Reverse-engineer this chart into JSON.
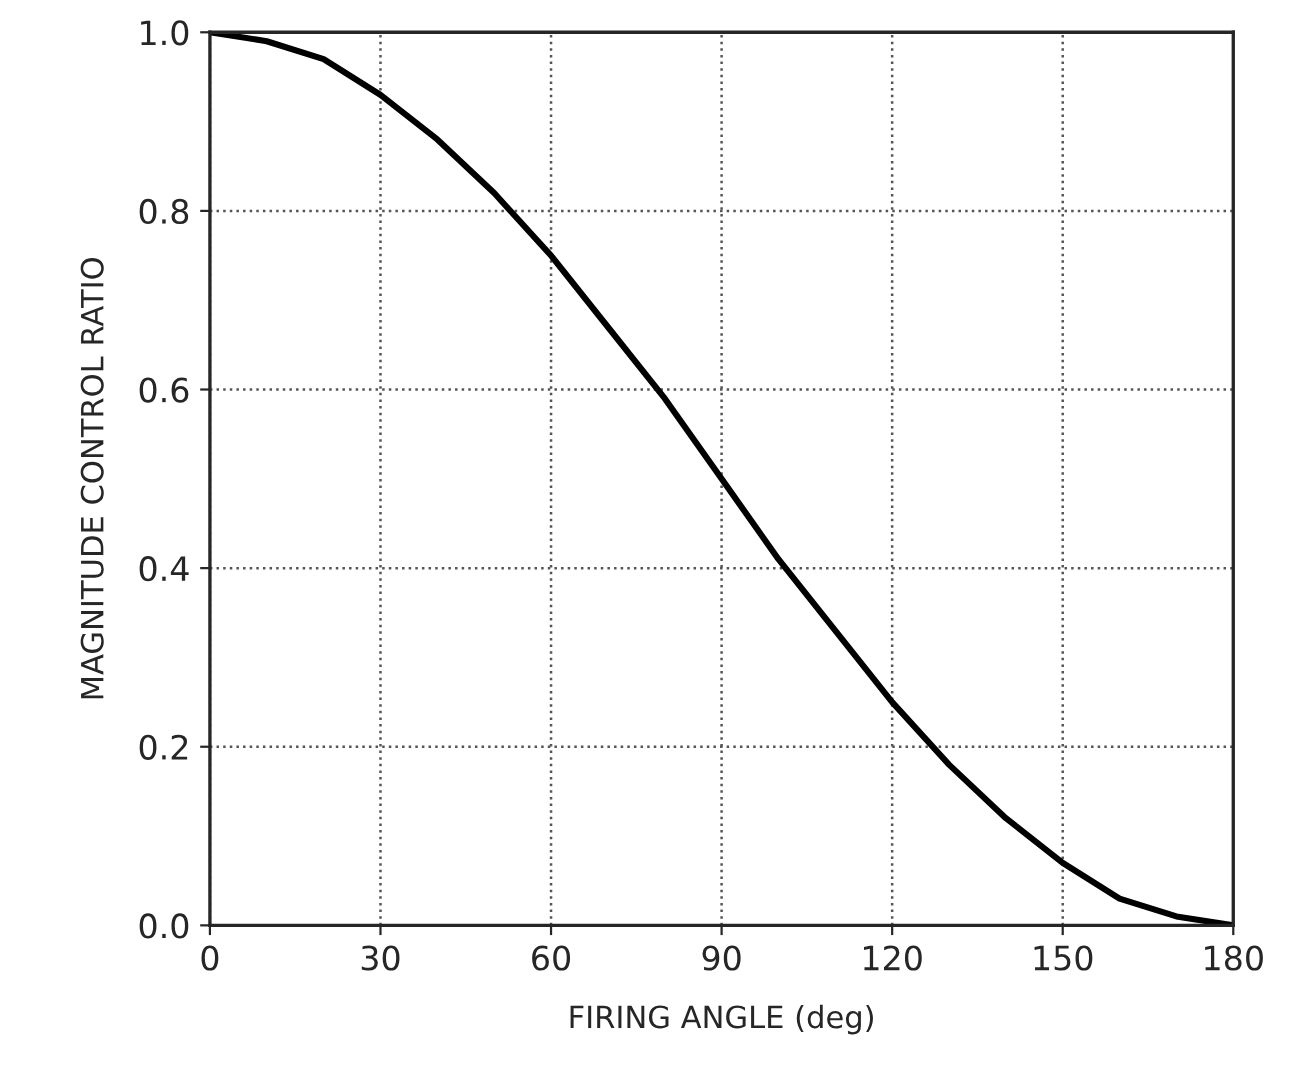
{
  "chart_data": {
    "type": "line",
    "xlabel": "FIRING ANGLE (deg)",
    "ylabel": "MAGNITUDE CONTROL RATIO",
    "x": [
      0,
      10,
      20,
      30,
      40,
      50,
      60,
      70,
      80,
      90,
      100,
      110,
      120,
      130,
      140,
      150,
      160,
      170,
      180
    ],
    "series": [
      {
        "color": "#000000",
        "values": [
          1.0,
          0.99,
          0.97,
          0.93,
          0.88,
          0.82,
          0.75,
          0.67,
          0.59,
          0.5,
          0.41,
          0.33,
          0.25,
          0.18,
          0.12,
          0.07,
          0.03,
          0.01,
          0.0
        ]
      }
    ],
    "xlim": [
      0,
      180
    ],
    "ylim": [
      0,
      1
    ],
    "xticks": [
      0,
      30,
      60,
      90,
      120,
      150,
      180
    ],
    "yticks": [
      {
        "value": 0,
        "label": "0.0"
      },
      {
        "value": 0.2,
        "label": "0.2"
      },
      {
        "value": 0.4,
        "label": "0.4"
      },
      {
        "value": 0.6,
        "label": "0.6"
      },
      {
        "value": 0.8,
        "label": "0.8"
      },
      {
        "value": 1,
        "label": "1.0"
      }
    ],
    "grid": true,
    "line_style": "solid",
    "marker": "none"
  }
}
